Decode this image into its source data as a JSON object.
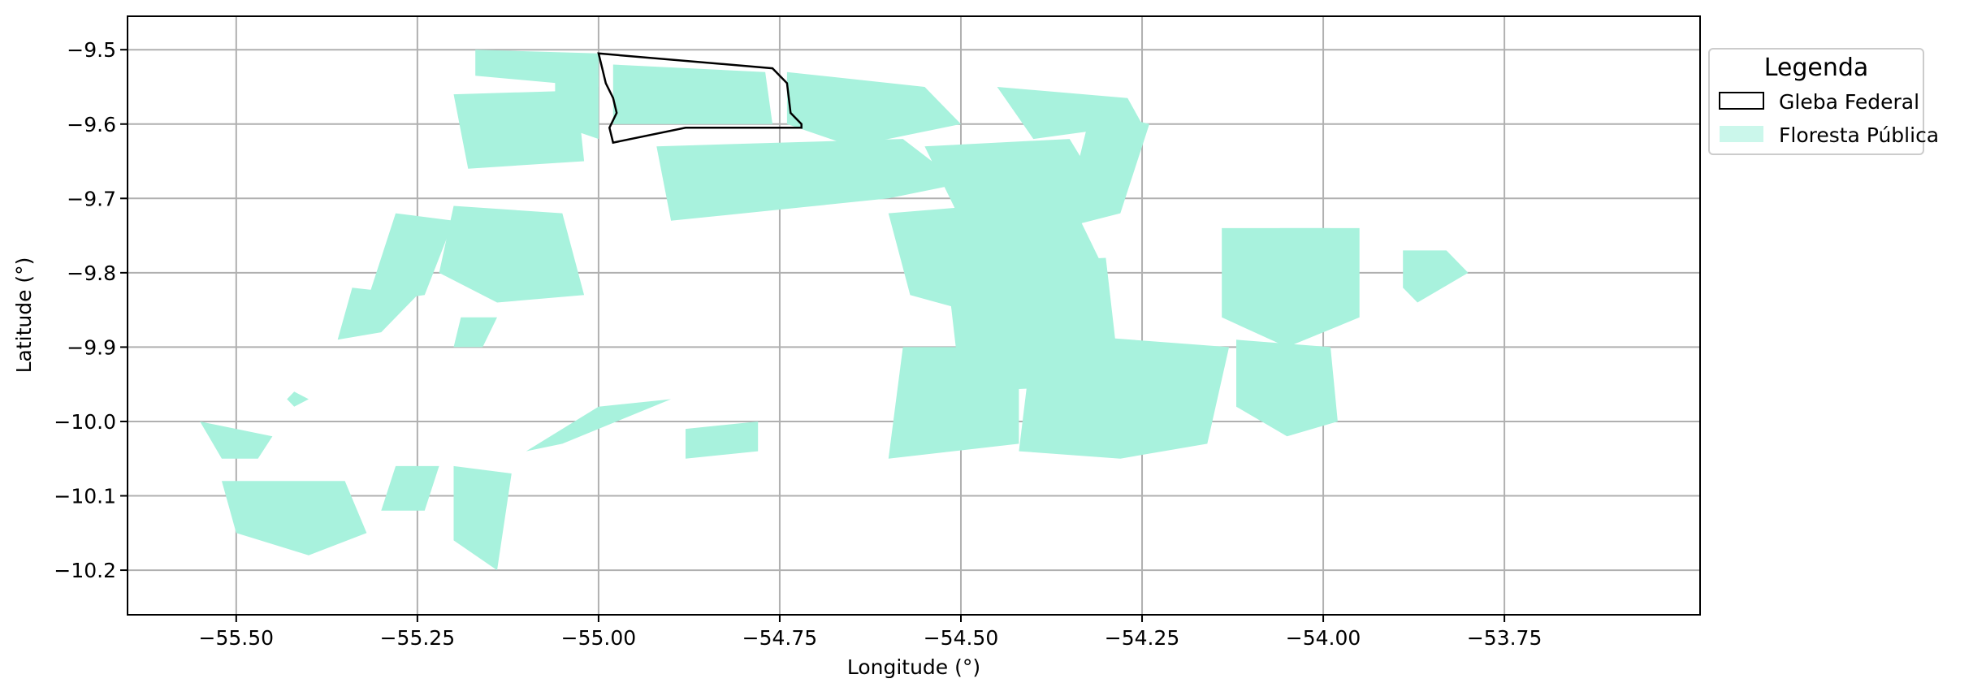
{
  "chart_data": {
    "type": "map",
    "xlabel": "Longitude (°)",
    "ylabel": "Latitude (°)",
    "xlim": [
      -55.65,
      -53.48
    ],
    "ylim": [
      -10.26,
      -9.455
    ],
    "xticks": [
      -55.5,
      -55.25,
      -55.0,
      -54.75,
      -54.5,
      -54.25,
      -54.0,
      -53.75
    ],
    "yticks": [
      -9.5,
      -9.6,
      -9.7,
      -9.8,
      -9.9,
      -10.0,
      -10.1,
      -10.2
    ],
    "xtick_labels": [
      "−55.50",
      "−55.25",
      "−55.00",
      "−54.75",
      "−54.50",
      "−54.25",
      "−54.00",
      "−53.75"
    ],
    "ytick_labels": [
      "−9.5",
      "−9.6",
      "−9.7",
      "−9.8",
      "−9.9",
      "−10.0",
      "−10.1",
      "−10.2"
    ],
    "grid": true,
    "legend": {
      "title": "Legenda",
      "placement": "outside-top-right",
      "entries": [
        {
          "label": "Gleba Federal",
          "style": "outline",
          "color": "#000000"
        },
        {
          "label": "Floresta Pública",
          "style": "fill",
          "color": "#a8f2dd"
        }
      ]
    },
    "colors": {
      "forest": "#a8f2dd",
      "gleba_outline": "#000000",
      "grid": "#b0b0b0"
    },
    "gleba_federal": {
      "outline": [
        [
          -55.0,
          -9.505
        ],
        [
          -54.76,
          -9.525
        ],
        [
          -54.74,
          -9.545
        ],
        [
          -54.735,
          -9.585
        ],
        [
          -54.72,
          -9.6
        ],
        [
          -54.72,
          -9.605
        ],
        [
          -54.88,
          -9.605
        ],
        [
          -54.98,
          -9.625
        ],
        [
          -54.985,
          -9.605
        ],
        [
          -54.975,
          -9.585
        ],
        [
          -54.98,
          -9.565
        ],
        [
          -54.99,
          -9.545
        ],
        [
          -54.995,
          -9.525
        ],
        [
          -55.0,
          -9.505
        ]
      ]
    },
    "floresta_publica": [
      [
        [
          -55.17,
          -9.5
        ],
        [
          -55.0,
          -9.505
        ],
        [
          -55.0,
          -9.55
        ],
        [
          -55.17,
          -9.535
        ]
      ],
      [
        [
          -55.06,
          -9.535
        ],
        [
          -55.0,
          -9.535
        ],
        [
          -55.0,
          -9.62
        ],
        [
          -55.06,
          -9.6
        ]
      ],
      [
        [
          -55.2,
          -9.56
        ],
        [
          -55.03,
          -9.555
        ],
        [
          -55.02,
          -9.65
        ],
        [
          -55.18,
          -9.66
        ]
      ],
      [
        [
          -54.98,
          -9.52
        ],
        [
          -54.77,
          -9.53
        ],
        [
          -54.76,
          -9.6
        ],
        [
          -54.98,
          -9.6
        ]
      ],
      [
        [
          -54.74,
          -9.53
        ],
        [
          -54.55,
          -9.55
        ],
        [
          -54.5,
          -9.6
        ],
        [
          -54.65,
          -9.63
        ],
        [
          -54.74,
          -9.6
        ]
      ],
      [
        [
          -54.45,
          -9.55
        ],
        [
          -54.27,
          -9.565
        ],
        [
          -54.25,
          -9.6
        ],
        [
          -54.4,
          -9.62
        ]
      ],
      [
        [
          -54.92,
          -9.63
        ],
        [
          -54.58,
          -9.62
        ],
        [
          -54.5,
          -9.68
        ],
        [
          -54.6,
          -9.7
        ],
        [
          -54.9,
          -9.73
        ]
      ],
      [
        [
          -54.55,
          -9.63
        ],
        [
          -54.35,
          -9.62
        ],
        [
          -54.3,
          -9.7
        ],
        [
          -54.35,
          -9.75
        ],
        [
          -54.5,
          -9.73
        ]
      ],
      [
        [
          -54.32,
          -9.58
        ],
        [
          -54.24,
          -9.6
        ],
        [
          -54.28,
          -9.72
        ],
        [
          -54.36,
          -9.74
        ]
      ],
      [
        [
          -55.2,
          -9.71
        ],
        [
          -55.05,
          -9.72
        ],
        [
          -55.02,
          -9.83
        ],
        [
          -55.14,
          -9.84
        ],
        [
          -55.22,
          -9.8
        ]
      ],
      [
        [
          -55.28,
          -9.72
        ],
        [
          -55.2,
          -9.73
        ],
        [
          -55.24,
          -9.83
        ],
        [
          -55.32,
          -9.84
        ]
      ],
      [
        [
          -55.34,
          -9.82
        ],
        [
          -55.25,
          -9.83
        ],
        [
          -55.3,
          -9.88
        ],
        [
          -55.36,
          -9.89
        ]
      ],
      [
        [
          -55.19,
          -9.86
        ],
        [
          -55.14,
          -9.86
        ],
        [
          -55.16,
          -9.9
        ],
        [
          -55.2,
          -9.9
        ]
      ],
      [
        [
          -54.6,
          -9.72
        ],
        [
          -54.35,
          -9.7
        ],
        [
          -54.3,
          -9.8
        ],
        [
          -54.42,
          -9.87
        ],
        [
          -54.57,
          -9.83
        ]
      ],
      [
        [
          -54.52,
          -9.79
        ],
        [
          -54.3,
          -9.78
        ],
        [
          -54.28,
          -9.95
        ],
        [
          -54.5,
          -9.96
        ]
      ],
      [
        [
          -54.4,
          -9.88
        ],
        [
          -54.13,
          -9.9
        ],
        [
          -54.16,
          -10.03
        ],
        [
          -54.28,
          -10.05
        ],
        [
          -54.42,
          -10.04
        ]
      ],
      [
        [
          -54.58,
          -9.9
        ],
        [
          -54.42,
          -9.9
        ],
        [
          -54.42,
          -10.03
        ],
        [
          -54.6,
          -10.05
        ]
      ],
      [
        [
          -54.14,
          -9.74
        ],
        [
          -53.95,
          -9.74
        ],
        [
          -53.95,
          -9.86
        ],
        [
          -54.05,
          -9.9
        ],
        [
          -54.14,
          -9.86
        ]
      ],
      [
        [
          -54.12,
          -9.89
        ],
        [
          -53.99,
          -9.9
        ],
        [
          -53.98,
          -10.0
        ],
        [
          -54.05,
          -10.02
        ],
        [
          -54.12,
          -9.98
        ]
      ],
      [
        [
          -54.06,
          -9.74
        ],
        [
          -53.99,
          -9.74
        ],
        [
          -53.99,
          -9.81
        ],
        [
          -54.06,
          -9.82
        ]
      ],
      [
        [
          -53.89,
          -9.77
        ],
        [
          -53.83,
          -9.77
        ],
        [
          -53.8,
          -9.8
        ],
        [
          -53.87,
          -9.84
        ],
        [
          -53.89,
          -9.82
        ]
      ],
      [
        [
          -55.55,
          -10.0
        ],
        [
          -55.45,
          -10.02
        ],
        [
          -55.47,
          -10.05
        ],
        [
          -55.52,
          -10.05
        ]
      ],
      [
        [
          -55.52,
          -10.08
        ],
        [
          -55.35,
          -10.08
        ],
        [
          -55.32,
          -10.15
        ],
        [
          -55.4,
          -10.18
        ],
        [
          -55.5,
          -10.15
        ]
      ],
      [
        [
          -55.28,
          -10.06
        ],
        [
          -55.22,
          -10.06
        ],
        [
          -55.24,
          -10.12
        ],
        [
          -55.3,
          -10.12
        ]
      ],
      [
        [
          -55.2,
          -10.06
        ],
        [
          -55.12,
          -10.07
        ],
        [
          -55.14,
          -10.2
        ],
        [
          -55.2,
          -10.16
        ]
      ],
      [
        [
          -55.0,
          -9.98
        ],
        [
          -54.9,
          -9.97
        ],
        [
          -55.05,
          -10.03
        ],
        [
          -55.1,
          -10.04
        ]
      ],
      [
        [
          -54.88,
          -10.01
        ],
        [
          -54.78,
          -10.0
        ],
        [
          -54.78,
          -10.04
        ],
        [
          -54.88,
          -10.05
        ]
      ],
      [
        [
          -55.42,
          -9.96
        ],
        [
          -55.4,
          -9.97
        ],
        [
          -55.42,
          -9.98
        ],
        [
          -55.43,
          -9.97
        ]
      ]
    ]
  }
}
